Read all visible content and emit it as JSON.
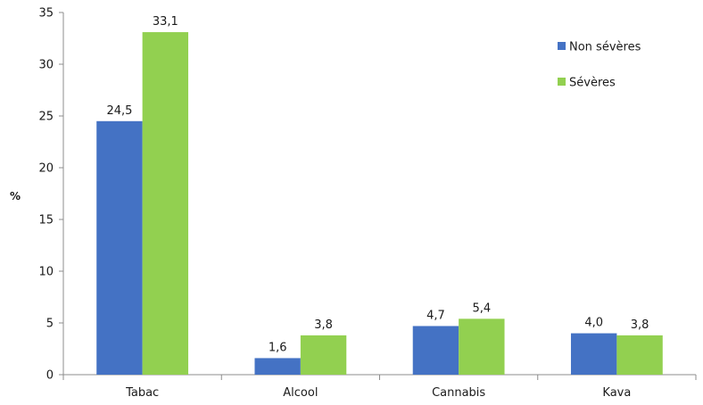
{
  "chart_data": {
    "type": "bar",
    "categories": [
      "Tabac",
      "Alcool",
      "Cannabis",
      "Kava"
    ],
    "series": [
      {
        "name": "Non sévères",
        "color": "#4472c4",
        "values": [
          24.5,
          1.6,
          4.7,
          4.0
        ],
        "labels": [
          "24,5",
          "1,6",
          "4,7",
          "4,0"
        ]
      },
      {
        "name": "Sévères",
        "color": "#92d050",
        "values": [
          33.1,
          3.8,
          5.4,
          3.8
        ],
        "labels": [
          "33,1",
          "3,8",
          "5,4",
          "3,8"
        ]
      }
    ],
    "ylabel": "%",
    "ylim": [
      0,
      35
    ],
    "yticks": [
      "0",
      "5",
      "10",
      "15",
      "20",
      "25",
      "30",
      "35"
    ],
    "ytick_values": [
      0,
      5,
      10,
      15,
      20,
      25,
      30,
      35
    ],
    "grid": false,
    "legend_position": "top-right"
  }
}
